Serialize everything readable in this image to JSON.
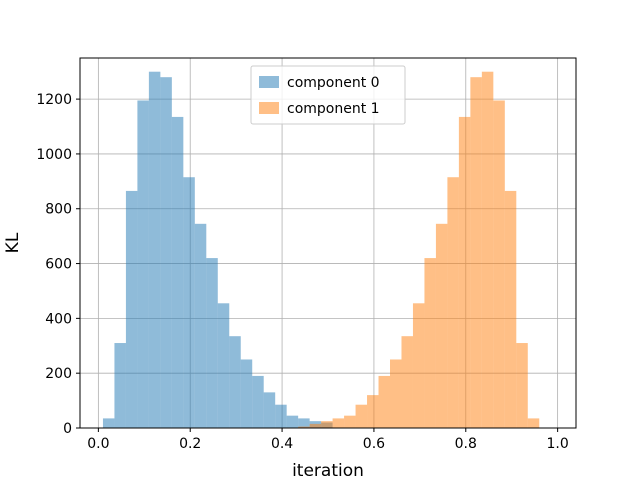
{
  "chart_data": {
    "type": "bar",
    "subtype": "overlapping-histogram",
    "title": "",
    "xlabel": "iteration",
    "ylabel": "KL",
    "xlim": [
      -0.04,
      1.04
    ],
    "ylim": [
      0,
      1350
    ],
    "xticks": [
      0.0,
      0.2,
      0.4,
      0.6,
      0.8,
      1.0
    ],
    "xtick_labels": [
      "0.0",
      "0.2",
      "0.4",
      "0.6",
      "0.8",
      "1.0"
    ],
    "yticks": [
      0,
      200,
      400,
      600,
      800,
      1000,
      1200
    ],
    "ytick_labels": [
      "0",
      "200",
      "400",
      "600",
      "800",
      "1000",
      "1200"
    ],
    "grid": true,
    "legend_position": "top-center",
    "bin_edges": [
      0.01,
      0.035,
      0.06,
      0.085,
      0.11,
      0.135,
      0.16,
      0.185,
      0.21,
      0.235,
      0.26,
      0.285,
      0.31,
      0.335,
      0.36,
      0.385,
      0.41,
      0.435,
      0.46,
      0.485,
      0.51,
      0.535,
      0.56,
      0.585,
      0.61,
      0.635,
      0.66,
      0.685,
      0.71,
      0.735,
      0.76,
      0.785,
      0.81,
      0.835,
      0.86,
      0.885,
      0.91,
      0.935,
      0.96,
      0.985
    ],
    "series": [
      {
        "name": "component 0",
        "color": "#1f77b4",
        "opacity": 0.5,
        "values": [
          35,
          310,
          865,
          1195,
          1300,
          1280,
          1135,
          915,
          745,
          620,
          455,
          335,
          250,
          190,
          130,
          85,
          45,
          35,
          25,
          20,
          0,
          0,
          0,
          0,
          0,
          0,
          0,
          0,
          0,
          0,
          0,
          0,
          0,
          0,
          0,
          0,
          0,
          0,
          0
        ]
      },
      {
        "name": "component 1",
        "color": "#ff7f0e",
        "opacity": 0.5,
        "values": [
          0,
          0,
          0,
          0,
          0,
          0,
          0,
          0,
          0,
          0,
          0,
          0,
          0,
          0,
          0,
          0,
          0,
          5,
          15,
          25,
          35,
          45,
          85,
          120,
          190,
          250,
          335,
          455,
          620,
          745,
          915,
          1135,
          1280,
          1300,
          1195,
          865,
          310,
          35,
          0
        ]
      }
    ]
  }
}
